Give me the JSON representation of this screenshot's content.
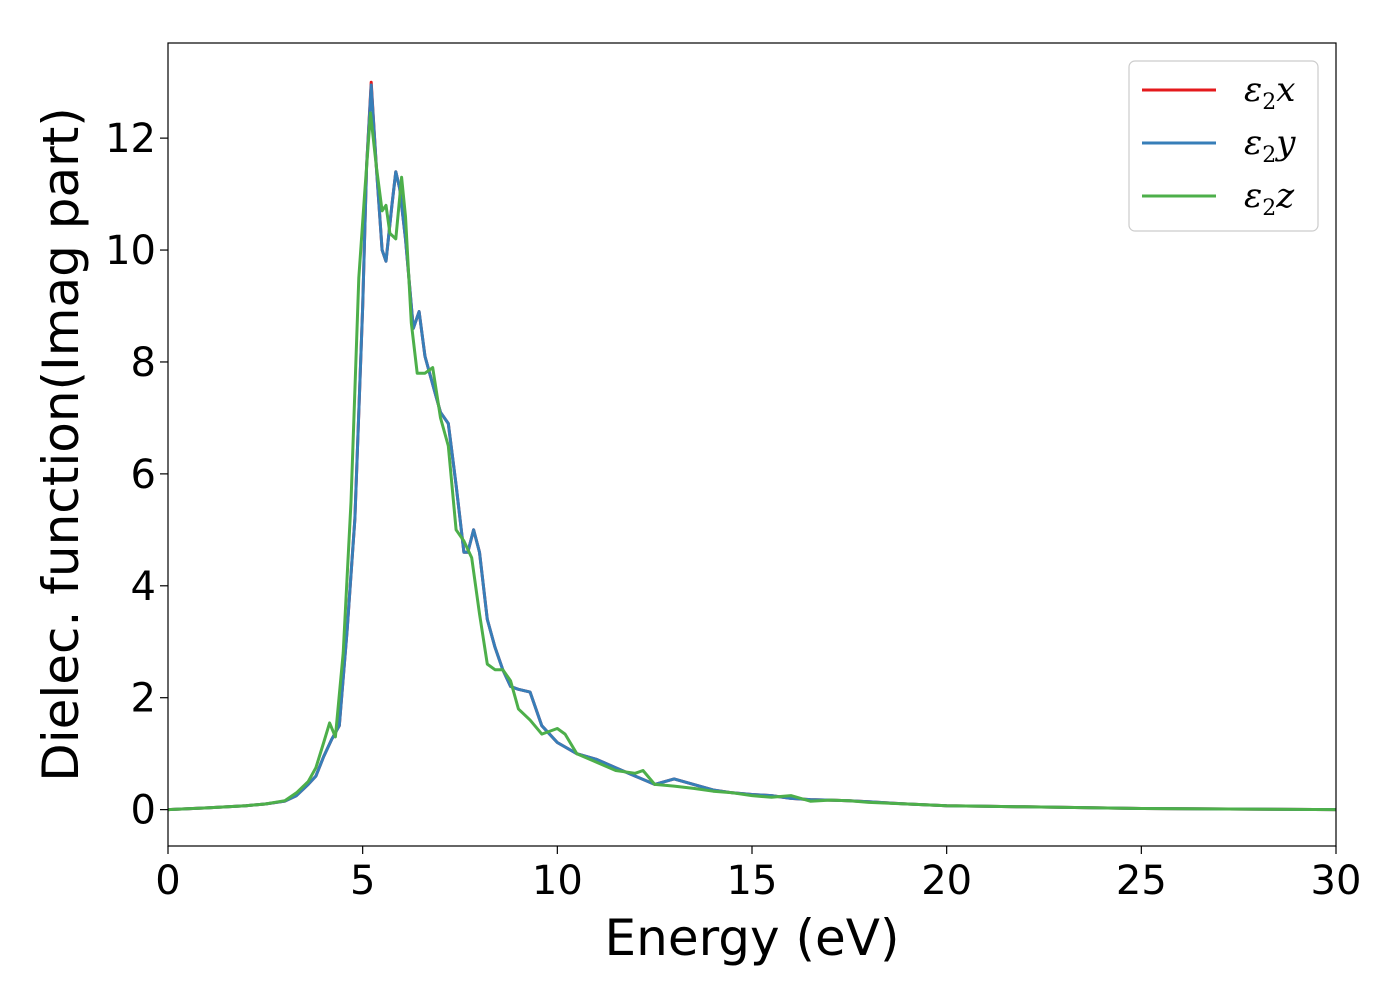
{
  "chart_data": {
    "type": "line",
    "xlabel": "Energy (eV)",
    "ylabel": "Dielec. function(Imag part)",
    "xlim": [
      0,
      30
    ],
    "ylim": [
      -0.65,
      13.7
    ],
    "x_ticks": [
      "0",
      "5",
      "10",
      "15",
      "20",
      "25",
      "30"
    ],
    "y_ticks": [
      "0",
      "2",
      "4",
      "6",
      "8",
      "10",
      "12"
    ],
    "grid": false,
    "legend_position": "top-right",
    "series": [
      {
        "name": "ε2x",
        "legend": {
          "main": "ε",
          "sub": "2",
          "suffix": "x"
        },
        "color": "#e41a1c",
        "x": [
          0,
          1,
          2,
          2.5,
          3,
          3.3,
          3.6,
          3.8,
          4.0,
          4.2,
          4.4,
          4.6,
          4.8,
          5.0,
          5.1,
          5.22,
          5.35,
          5.5,
          5.6,
          5.75,
          5.85,
          5.95,
          6.1,
          6.3,
          6.45,
          6.6,
          6.8,
          7.0,
          7.2,
          7.4,
          7.6,
          7.7,
          7.85,
          8.0,
          8.2,
          8.4,
          8.6,
          8.8,
          9.0,
          9.3,
          9.6,
          10.0,
          10.5,
          11.0,
          11.5,
          12.0,
          12.5,
          13.0,
          13.5,
          14.0,
          14.5,
          15.0,
          15.5,
          16.0,
          16.5,
          17.0,
          17.5,
          18,
          19,
          20,
          21,
          22,
          25,
          30
        ],
        "y": [
          0.0,
          0.03,
          0.07,
          0.1,
          0.15,
          0.25,
          0.45,
          0.6,
          0.95,
          1.25,
          1.5,
          3.2,
          5.2,
          9.0,
          11.5,
          13.0,
          11.5,
          10.0,
          9.8,
          10.8,
          11.4,
          11.1,
          10.2,
          8.6,
          8.9,
          8.1,
          7.6,
          7.1,
          6.9,
          5.8,
          4.6,
          4.6,
          5.0,
          4.6,
          3.4,
          2.9,
          2.5,
          2.2,
          2.15,
          2.1,
          1.5,
          1.2,
          1.0,
          0.9,
          0.75,
          0.6,
          0.45,
          0.55,
          0.45,
          0.35,
          0.3,
          0.27,
          0.25,
          0.2,
          0.18,
          0.17,
          0.16,
          0.14,
          0.1,
          0.07,
          0.06,
          0.05,
          0.02,
          0.0
        ]
      },
      {
        "name": "ε2y",
        "legend": {
          "main": "ε",
          "sub": "2",
          "suffix": "y"
        },
        "color": "#377eb8",
        "x": [
          0,
          1,
          2,
          2.5,
          3,
          3.3,
          3.6,
          3.8,
          4.0,
          4.2,
          4.4,
          4.6,
          4.8,
          5.0,
          5.1,
          5.22,
          5.35,
          5.5,
          5.6,
          5.75,
          5.85,
          5.95,
          6.1,
          6.3,
          6.45,
          6.6,
          6.8,
          7.0,
          7.2,
          7.4,
          7.6,
          7.7,
          7.85,
          8.0,
          8.2,
          8.4,
          8.6,
          8.8,
          9.0,
          9.3,
          9.6,
          10.0,
          10.5,
          11.0,
          11.5,
          12.0,
          12.5,
          13.0,
          13.5,
          14.0,
          14.5,
          15.0,
          15.5,
          16.0,
          16.5,
          17.0,
          17.5,
          18,
          19,
          20,
          21,
          22,
          25,
          30
        ],
        "y": [
          0.0,
          0.03,
          0.07,
          0.1,
          0.15,
          0.25,
          0.45,
          0.6,
          0.95,
          1.25,
          1.5,
          3.2,
          5.2,
          9.0,
          11.5,
          12.95,
          11.5,
          10.0,
          9.8,
          10.8,
          11.4,
          11.1,
          10.2,
          8.6,
          8.9,
          8.1,
          7.6,
          7.1,
          6.9,
          5.8,
          4.6,
          4.6,
          5.0,
          4.6,
          3.4,
          2.9,
          2.5,
          2.2,
          2.15,
          2.1,
          1.5,
          1.2,
          1.0,
          0.9,
          0.75,
          0.6,
          0.45,
          0.55,
          0.45,
          0.35,
          0.3,
          0.27,
          0.25,
          0.2,
          0.18,
          0.17,
          0.16,
          0.14,
          0.1,
          0.07,
          0.06,
          0.05,
          0.02,
          0.0
        ]
      },
      {
        "name": "ε2z",
        "legend": {
          "main": "ε",
          "sub": "2",
          "suffix": "z"
        },
        "color": "#4daf4a",
        "x": [
          0,
          1,
          2,
          2.5,
          3,
          3.3,
          3.6,
          3.8,
          4.0,
          4.15,
          4.3,
          4.5,
          4.7,
          4.9,
          5.05,
          5.2,
          5.35,
          5.5,
          5.6,
          5.7,
          5.85,
          6.0,
          6.1,
          6.25,
          6.4,
          6.6,
          6.8,
          7.0,
          7.2,
          7.4,
          7.6,
          7.8,
          8.0,
          8.2,
          8.4,
          8.6,
          8.8,
          9.0,
          9.3,
          9.6,
          10.0,
          10.2,
          10.5,
          11.0,
          11.5,
          12.0,
          12.2,
          12.5,
          13.0,
          13.5,
          14.0,
          14.5,
          15.0,
          15.5,
          16.0,
          16.5,
          17.0,
          17.5,
          18,
          19,
          20,
          21,
          22,
          25,
          30
        ],
        "y": [
          0.0,
          0.03,
          0.07,
          0.1,
          0.16,
          0.3,
          0.5,
          0.75,
          1.2,
          1.55,
          1.3,
          2.8,
          5.5,
          9.5,
          11.0,
          12.45,
          11.5,
          10.7,
          10.8,
          10.3,
          10.2,
          11.3,
          10.6,
          8.7,
          7.8,
          7.8,
          7.9,
          7.0,
          6.5,
          5.0,
          4.8,
          4.5,
          3.5,
          2.6,
          2.5,
          2.5,
          2.3,
          1.8,
          1.6,
          1.35,
          1.45,
          1.35,
          1.0,
          0.85,
          0.7,
          0.65,
          0.7,
          0.45,
          0.42,
          0.38,
          0.33,
          0.3,
          0.25,
          0.22,
          0.25,
          0.15,
          0.17,
          0.16,
          0.13,
          0.1,
          0.07,
          0.06,
          0.05,
          0.02,
          0.0
        ]
      }
    ]
  }
}
